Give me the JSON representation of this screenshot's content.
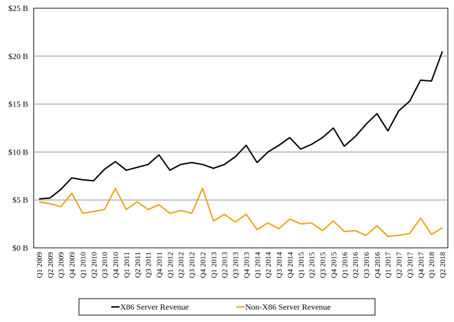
{
  "chart_data": {
    "type": "line",
    "categories": [
      "Q1 2009",
      "Q2 2009",
      "Q3 2009",
      "Q4 2009",
      "Q1 2010",
      "Q2 2010",
      "Q3 2010",
      "Q4 2010",
      "Q1 2011",
      "Q2 2011",
      "Q3 2011",
      "Q4 2011",
      "Q1 2012",
      "Q2 2012",
      "Q3 2012",
      "Q4 2012",
      "Q1 2013",
      "Q2 2013",
      "Q3 2013",
      "Q4 2013",
      "Q1 2014",
      "Q2 2014",
      "Q3 2014",
      "Q4 2014",
      "Q1 2015",
      "Q2 2015",
      "Q3 2015",
      "Q4 2015",
      "Q1 2016",
      "Q2 2016",
      "Q3 2016",
      "Q4 2016",
      "Q1 2017",
      "Q2 2017",
      "Q3 2017",
      "Q4 2017",
      "Q1 2018",
      "Q2 2018"
    ],
    "series": [
      {
        "name": "X86 Server Revenue",
        "color": "#000000",
        "values": [
          5.1,
          5.2,
          6.1,
          7.3,
          7.1,
          7.0,
          8.2,
          9.0,
          8.1,
          8.4,
          8.7,
          9.7,
          8.1,
          8.7,
          8.9,
          8.7,
          8.3,
          8.7,
          9.5,
          10.7,
          8.9,
          10.0,
          10.7,
          11.5,
          10.3,
          10.8,
          11.5,
          12.5,
          10.6,
          11.6,
          12.9,
          14.0,
          12.2,
          14.3,
          15.3,
          17.5,
          17.4,
          20.5
        ]
      },
      {
        "name": "Non-X86 Server Revenue",
        "color": "#E8A31C",
        "values": [
          4.8,
          4.6,
          4.3,
          5.7,
          3.6,
          3.8,
          4.0,
          6.2,
          4.0,
          4.8,
          4.0,
          4.5,
          3.6,
          3.9,
          3.6,
          6.2,
          2.8,
          3.5,
          2.7,
          3.5,
          1.9,
          2.6,
          2.0,
          3.0,
          2.5,
          2.6,
          1.8,
          2.8,
          1.7,
          1.8,
          1.3,
          2.3,
          1.2,
          1.3,
          1.5,
          3.1,
          1.4,
          2.1
        ]
      }
    ],
    "yticks": [
      {
        "value": 0,
        "label": "$0 B"
      },
      {
        "value": 5,
        "label": "$5 B"
      },
      {
        "value": 10,
        "label": "$10 B"
      },
      {
        "value": 15,
        "label": "$15 B"
      },
      {
        "value": 20,
        "label": "$20 B"
      },
      {
        "value": 25,
        "label": "$25 B"
      }
    ],
    "ylim": [
      0,
      25
    ],
    "title": "",
    "xlabel": "",
    "ylabel": "",
    "grid": "horizontal",
    "legend_position": "bottom"
  }
}
